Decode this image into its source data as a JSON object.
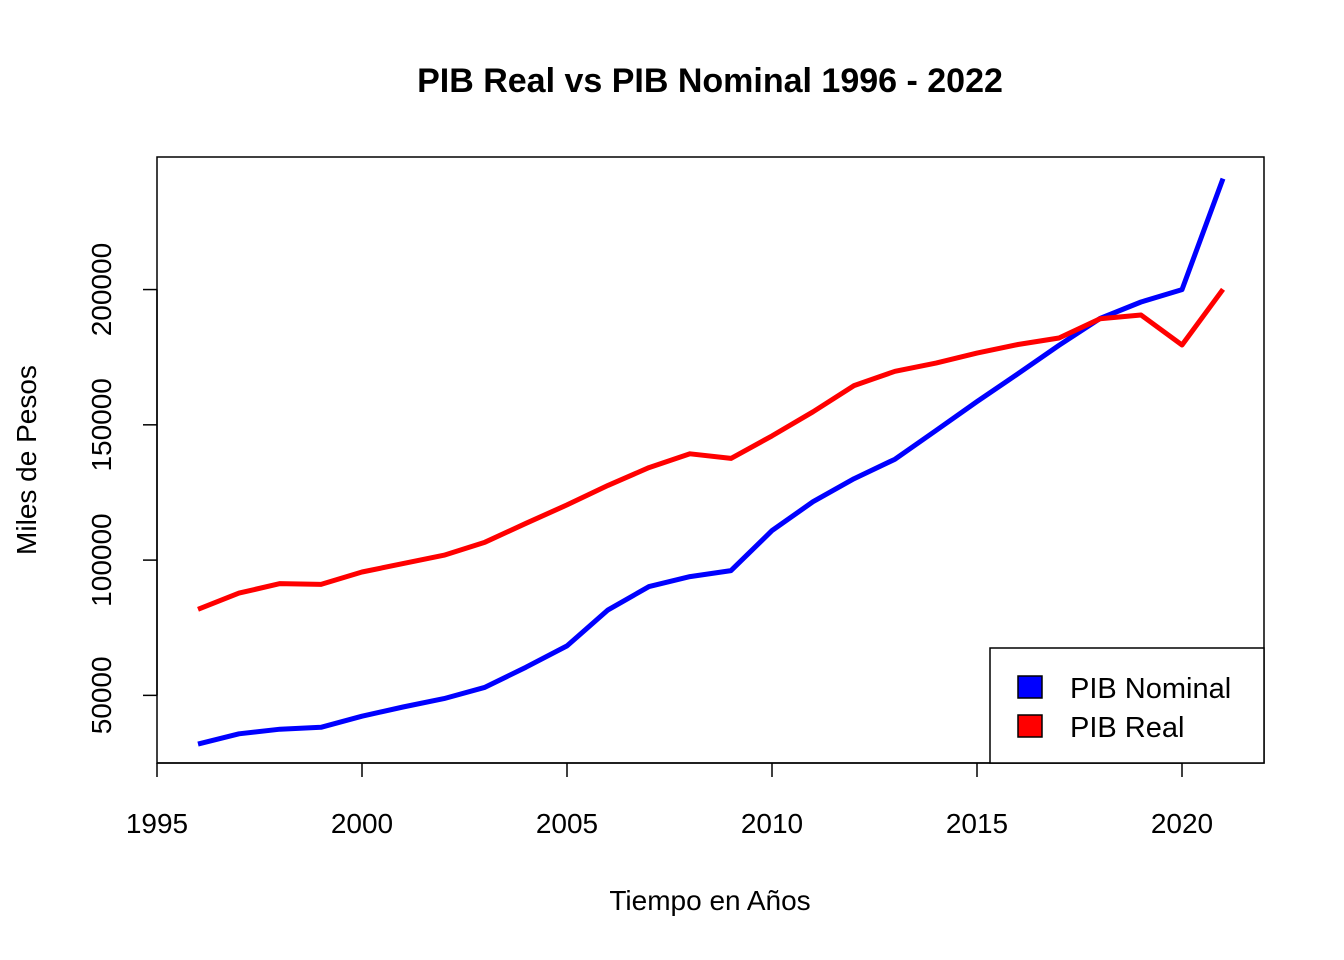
{
  "chart_data": {
    "type": "line",
    "title": "PIB Real vs PIB Nominal 1996 - 2022",
    "xlabel": "Tiempo en Años",
    "ylabel": "Miles de Pesos",
    "xlim": [
      1995,
      2022
    ],
    "ylim": [
      25000,
      249000
    ],
    "x_ticks": [
      1995,
      2000,
      2005,
      2010,
      2015,
      2020
    ],
    "y_ticks": [
      50000,
      100000,
      150000,
      200000
    ],
    "x_tick_labels": [
      "1995",
      "2000",
      "2005",
      "2010",
      "2015",
      "2020"
    ],
    "y_tick_labels": [
      "50000",
      "100000",
      "150000",
      "200000"
    ],
    "grid": false,
    "legend_position": "bottom-right",
    "x": [
      1996,
      1997,
      1998,
      1999,
      2000,
      2001,
      2002,
      2003,
      2004,
      2005,
      2006,
      2007,
      2008,
      2009,
      2010,
      2011,
      2012,
      2013,
      2014,
      2015,
      2016,
      2017,
      2018,
      2019,
      2020,
      2021
    ],
    "series": [
      {
        "name": "PIB Nominal",
        "color": "#0000ff",
        "values": [
          32000,
          35800,
          37500,
          38200,
          42300,
          45700,
          48800,
          53000,
          60400,
          68300,
          81600,
          90200,
          93900,
          96100,
          110900,
          121600,
          130100,
          137300,
          147900,
          158600,
          168900,
          179400,
          189300,
          195400,
          200000,
          241000
        ]
      },
      {
        "name": "PIB Real",
        "color": "#ff0000",
        "values": [
          81800,
          87800,
          91300,
          91000,
          95600,
          98700,
          101800,
          106600,
          113600,
          120400,
          127600,
          134200,
          139300,
          137600,
          145900,
          154800,
          164500,
          169800,
          172800,
          176500,
          179700,
          182100,
          189200,
          190600,
          179500,
          200100
        ]
      }
    ]
  }
}
